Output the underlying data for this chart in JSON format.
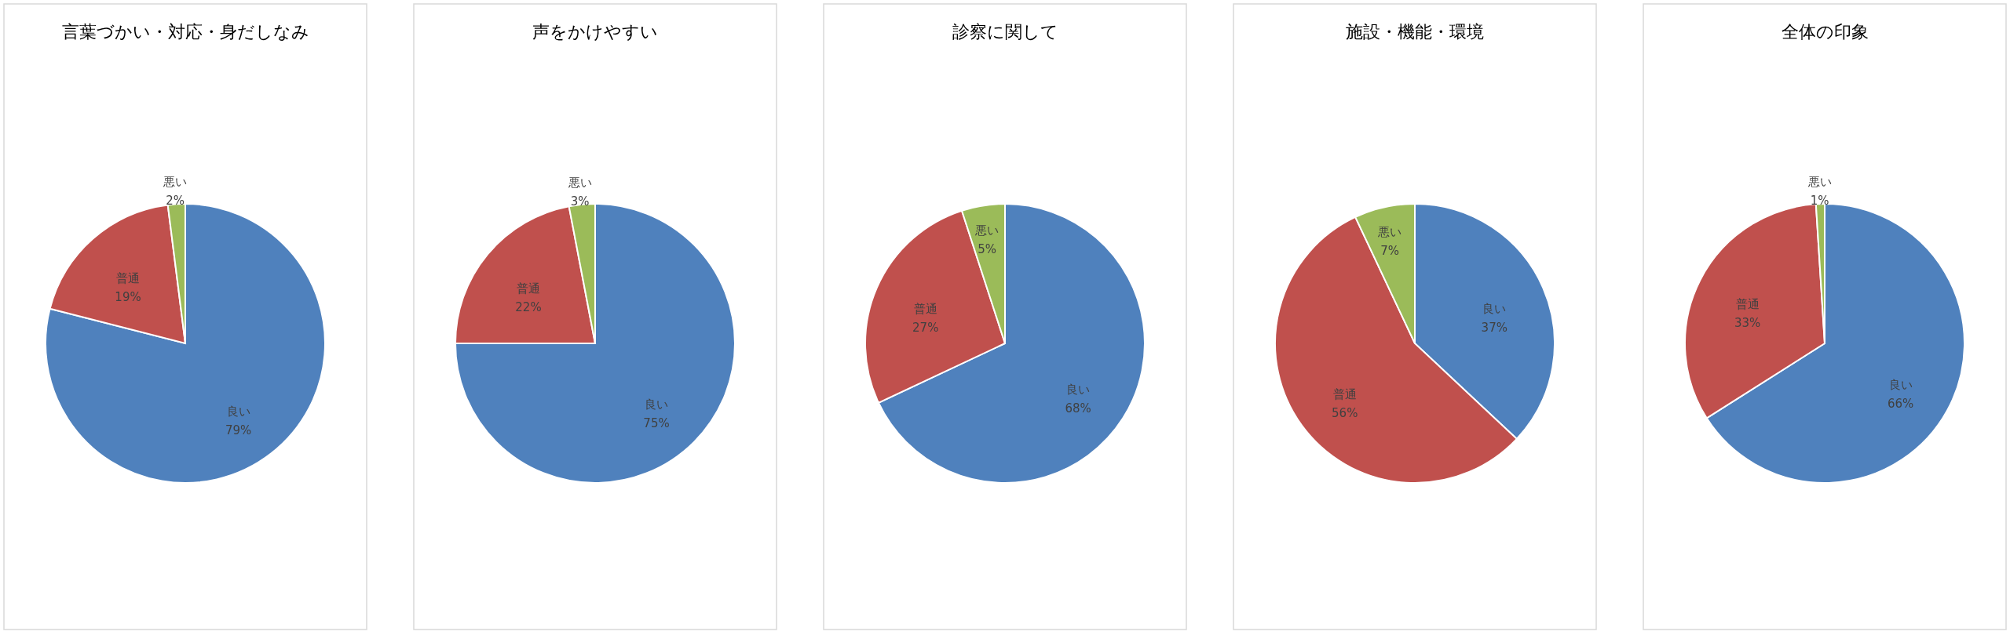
{
  "chart_data": [
    {
      "type": "pie",
      "title": "言葉づかい・対応・身だしなみ",
      "categories": [
        "良い",
        "普通",
        "悪い"
      ],
      "values": [
        79,
        19,
        2
      ],
      "colors": [
        "#4f81bd",
        "#c0504d",
        "#9bbb59"
      ],
      "value_labels": [
        "79%",
        "19%",
        "2%"
      ]
    },
    {
      "type": "pie",
      "title": "声をかけやすい",
      "categories": [
        "良い",
        "普通",
        "悪い"
      ],
      "values": [
        75,
        22,
        3
      ],
      "colors": [
        "#4f81bd",
        "#c0504d",
        "#9bbb59"
      ],
      "value_labels": [
        "75%",
        "22%",
        "3%"
      ]
    },
    {
      "type": "pie",
      "title": "診察に関して",
      "categories": [
        "良い",
        "普通",
        "悪い"
      ],
      "values": [
        68,
        27,
        5
      ],
      "colors": [
        "#4f81bd",
        "#c0504d",
        "#9bbb59"
      ],
      "value_labels": [
        "68%",
        "27%",
        "5%"
      ]
    },
    {
      "type": "pie",
      "title": "施設・機能・環境",
      "categories": [
        "良い",
        "普通",
        "悪い"
      ],
      "values": [
        37,
        56,
        7
      ],
      "colors": [
        "#4f81bd",
        "#c0504d",
        "#9bbb59"
      ],
      "value_labels": [
        "37%",
        "56%",
        "7%"
      ]
    },
    {
      "type": "pie",
      "title": "全体の印象",
      "categories": [
        "良い",
        "普通",
        "悪い"
      ],
      "values": [
        66,
        33,
        1
      ],
      "colors": [
        "#4f81bd",
        "#c0504d",
        "#9bbb59"
      ],
      "value_labels": [
        "66%",
        "33%",
        "1%"
      ]
    }
  ]
}
